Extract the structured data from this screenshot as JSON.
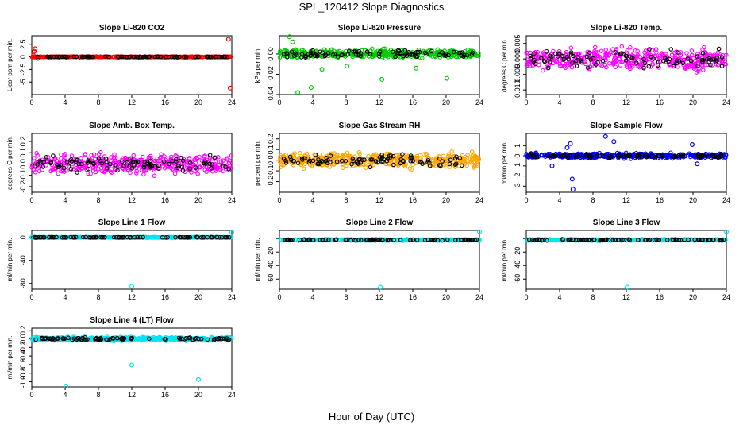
{
  "figure": {
    "title": "SPL_120412  Slope Diagnostics",
    "xlabel": "Hour of Day (UTC)"
  },
  "chart_data": [
    {
      "type": "scatter",
      "title": "Slope Li-820 CO2",
      "ylabel": "Licor ppm per min.",
      "color": "#ff0000",
      "xlim": [
        0,
        24
      ],
      "xticks": [
        "0",
        "4",
        "8",
        "12",
        "16",
        "20",
        "24"
      ],
      "ylim": [
        -7.5,
        4.2
      ],
      "yticks": [
        -5,
        -2.5,
        0,
        2.5
      ],
      "ytick_labels": [
        "-5",
        "-2.5",
        "0",
        "2.5"
      ],
      "series": [
        {
          "values": [
            {
              "x": 0.2,
              "y": 0.3
            },
            {
              "x": 0.3,
              "y": 1.1
            },
            {
              "x": 0.4,
              "y": 1.6
            },
            {
              "x": 0.7,
              "y": -0.3
            },
            {
              "x": 23.6,
              "y": 3.5
            },
            {
              "x": 23.8,
              "y": -6.2
            }
          ]
        }
      ],
      "band": {
        "center": 0.0,
        "spread": 0.12
      }
    },
    {
      "type": "scatter",
      "title": "Slope Li-820 Pressure",
      "ylabel": "kPa per min.",
      "color": "#00cc00",
      "xlim": [
        0,
        24
      ],
      "xticks": [
        "0",
        "4",
        "8",
        "12",
        "16",
        "20",
        "24"
      ],
      "ylim": [
        -0.04,
        0.018
      ],
      "yticks": [
        -0.04,
        -0.02,
        0.0
      ],
      "ytick_labels": [
        "-0.04",
        "-0.02",
        "0.00"
      ],
      "series": [
        {
          "values": [
            {
              "x": 1.2,
              "y": 0.017
            },
            {
              "x": 1.6,
              "y": 0.012
            },
            {
              "x": 2.2,
              "y": -0.038
            },
            {
              "x": 3.8,
              "y": -0.033
            },
            {
              "x": 5.1,
              "y": -0.015
            },
            {
              "x": 12.3,
              "y": -0.025
            },
            {
              "x": 16.4,
              "y": -0.014
            },
            {
              "x": 20.1,
              "y": -0.024
            },
            {
              "x": 8.1,
              "y": -0.012
            }
          ]
        }
      ],
      "band": {
        "center": 0.0,
        "spread": 0.006
      }
    },
    {
      "type": "scatter",
      "title": "Slope Li-820 Temp.",
      "ylabel": "degrees C per min.",
      "color": "#ff00ff",
      "xlim": [
        0,
        24
      ],
      "xticks": [
        "0",
        "4",
        "8",
        "12",
        "16",
        "20",
        "24"
      ],
      "ylim": [
        -0.0115,
        0.0075
      ],
      "yticks": [
        -0.01,
        -0.005,
        0.0,
        0.005
      ],
      "ytick_labels": [
        "-0.010",
        "-0.005",
        "0.000",
        "0.005"
      ],
      "series": [],
      "band": {
        "center": 0.0,
        "spread": 0.005
      }
    },
    {
      "type": "scatter",
      "title": "Slope Amb. Box Temp.",
      "ylabel": "degrees C per min.",
      "color": "#ff00ff",
      "xlim": [
        0,
        24
      ],
      "xticks": [
        "0",
        "4",
        "8",
        "12",
        "16",
        "20",
        "24"
      ],
      "ylim": [
        -0.25,
        0.27
      ],
      "yticks": [
        -0.2,
        -0.1,
        0.0,
        0.1,
        0.2
      ],
      "ytick_labels": [
        "-0.2",
        "-0.1",
        "0.0",
        "0.1",
        "0.2"
      ],
      "series": [],
      "band": {
        "center": 0.0,
        "spread": 0.12
      }
    },
    {
      "type": "scatter",
      "title": "Slope Gas Stream RH",
      "ylabel": "percent per min.",
      "color": "#ffa500",
      "xlim": [
        0,
        24
      ],
      "xticks": [
        "0",
        "4",
        "8",
        "12",
        "16",
        "20",
        "24"
      ],
      "ylim": [
        -0.3,
        0.25
      ],
      "yticks": [
        -0.2,
        -0.1,
        0.0,
        0.1,
        0.2
      ],
      "ytick_labels": [
        "-0.2",
        "-0.1",
        "0.0",
        "0.1",
        "0.2"
      ],
      "series": [],
      "band": {
        "center": 0.0,
        "spread": 0.1
      }
    },
    {
      "type": "scatter",
      "title": "Slope Sample Flow",
      "ylabel": "ml/min per min.",
      "color": "#0000ff",
      "xlim": [
        0,
        24
      ],
      "xticks": [
        "0",
        "4",
        "8",
        "12",
        "16",
        "20",
        "24"
      ],
      "ylim": [
        -3.6,
        2.2
      ],
      "yticks": [
        -3,
        -2,
        -1,
        0,
        1
      ],
      "ytick_labels": [
        "-3",
        "-2",
        "-1",
        "0",
        "1"
      ],
      "series": [
        {
          "values": [
            {
              "x": 5.6,
              "y": -3.3
            },
            {
              "x": 5.5,
              "y": -2.3
            },
            {
              "x": 5.3,
              "y": 1.2
            },
            {
              "x": 4.9,
              "y": 0.8
            },
            {
              "x": 10.5,
              "y": 1.4
            },
            {
              "x": 9.5,
              "y": 1.9
            },
            {
              "x": 3.1,
              "y": -1.0
            },
            {
              "x": 19.9,
              "y": 1.1
            },
            {
              "x": 20.5,
              "y": -0.8
            }
          ]
        }
      ],
      "band": {
        "center": 0.0,
        "spread": 0.35
      }
    },
    {
      "type": "scatter",
      "title": "Slope Line 1 Flow",
      "ylabel": "ml/min per min.",
      "color": "#00e5ee",
      "xlim": [
        0,
        24
      ],
      "xticks": [
        "0",
        "4",
        "8",
        "12",
        "16",
        "20",
        "24"
      ],
      "ylim": [
        -90,
        12
      ],
      "yticks": [
        -80,
        -40,
        0
      ],
      "ytick_labels": [
        "-80",
        "-40",
        "0"
      ],
      "series": [
        {
          "values": [
            {
              "x": 12.0,
              "y": -85
            },
            {
              "x": 24.0,
              "y": 9
            }
          ]
        }
      ],
      "band": {
        "center": 0.0,
        "spread": 0.8
      }
    },
    {
      "type": "scatter",
      "title": "Slope Line 2 Flow",
      "ylabel": "ml/min per min.",
      "color": "#00e5ee",
      "xlim": [
        0,
        24
      ],
      "xticks": [
        "0",
        "4",
        "8",
        "12",
        "16",
        "20",
        "24"
      ],
      "ylim": [
        -75,
        12
      ],
      "yticks": [
        -60,
        -40,
        -20,
        0
      ],
      "ytick_labels": [
        "-60",
        "-40",
        "-20",
        ""
      ],
      "series": [
        {
          "values": [
            {
              "x": 12.1,
              "y": -72
            },
            {
              "x": 24.0,
              "y": 10
            }
          ]
        }
      ],
      "band": {
        "center": -2.0,
        "spread": 1.5
      }
    },
    {
      "type": "scatter",
      "title": "Slope Line 3 Flow",
      "ylabel": "ml/min per min.",
      "color": "#00e5ee",
      "xlim": [
        0,
        24
      ],
      "xticks": [
        "0",
        "4",
        "8",
        "12",
        "16",
        "20",
        "24"
      ],
      "ylim": [
        -75,
        12
      ],
      "yticks": [
        -60,
        -40,
        -20,
        0
      ],
      "ytick_labels": [
        "-60",
        "-40",
        "-20",
        ""
      ],
      "series": [
        {
          "values": [
            {
              "x": 12.1,
              "y": -72
            },
            {
              "x": 24.0,
              "y": 10
            }
          ]
        }
      ],
      "band": {
        "center": -2.0,
        "spread": 1.5
      }
    },
    {
      "type": "scatter",
      "title": "Slope Line 4 (LT) Flow",
      "ylabel": "ml/min per min.",
      "color": "#00e5ee",
      "xlim": [
        0,
        24
      ],
      "xticks": [
        "0",
        "4",
        "8",
        "12",
        "16",
        "20",
        "24"
      ],
      "ylim": [
        -1.12,
        0.25
      ],
      "yticks": [
        -1.0,
        -0.8,
        -0.6,
        -0.4,
        -0.2,
        0.0,
        0.2
      ],
      "ytick_labels": [
        "-1.0",
        "-0.8",
        "-0.6",
        "-0.4",
        "-0.2",
        "0.0",
        "0.2"
      ],
      "series": [
        {
          "values": [
            {
              "x": 4.1,
              "y": -1.1
            },
            {
              "x": 12.0,
              "y": -0.61
            },
            {
              "x": 20.0,
              "y": -0.95
            }
          ]
        }
      ],
      "band": {
        "center": 0.0,
        "spread": 0.06
      }
    }
  ]
}
